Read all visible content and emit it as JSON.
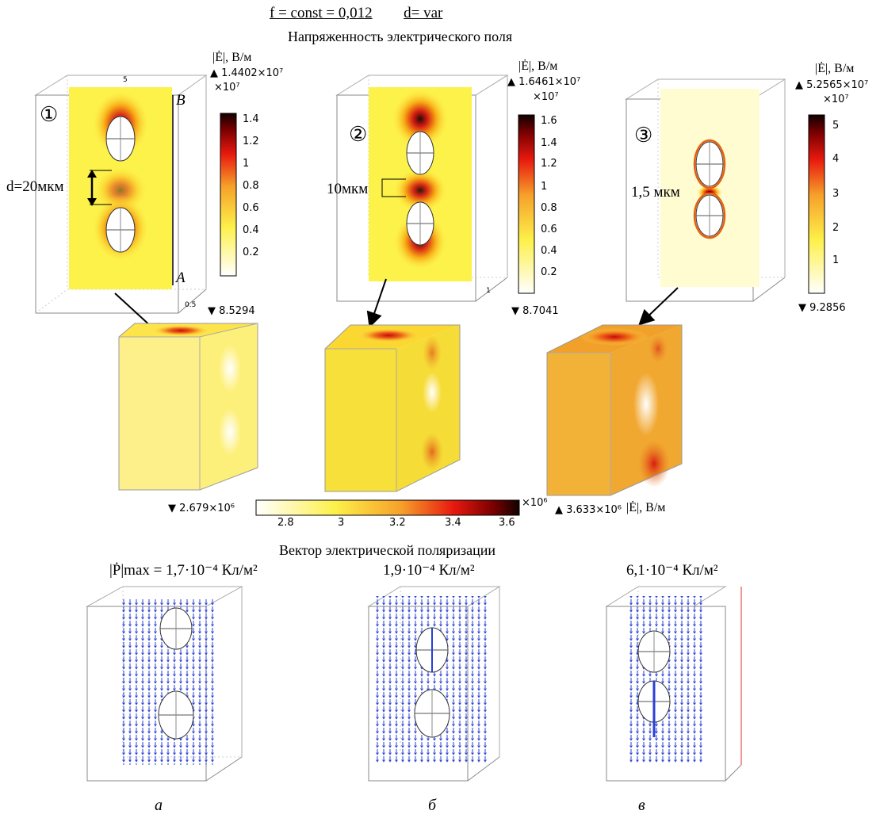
{
  "header": {
    "f_label": "f = const = 0,012",
    "d_label": "d= var"
  },
  "section_field_title": "Напряженность электрического поля",
  "section_polarization_title": "Вектор электрической поляризации",
  "field_panels": [
    {
      "circle_label": "①",
      "unit": "|Ė|, В/м",
      "max_label": "▲ 1.4402×10⁷",
      "multiplier": "×10⁷",
      "ticks": [
        "1.4",
        "1.2",
        "1",
        "0.8",
        "0.6",
        "0.4",
        "0.2"
      ],
      "min_label": "▼ 8.5294",
      "distance_label": "d=20мкм",
      "point_b": "B",
      "point_a": "A"
    },
    {
      "circle_label": "②",
      "unit": "|Ė|, В/м",
      "max_label": "▲ 1.6461×10⁷",
      "multiplier": "×10⁷",
      "ticks": [
        "1.6",
        "1.4",
        "1.2",
        "1",
        "0.8",
        "0.6",
        "0.4",
        "0.2"
      ],
      "min_label": "▼ 8.7041",
      "distance_label": "10мкм"
    },
    {
      "circle_label": "③",
      "unit": "|Ė|, В/м",
      "max_label": "▲ 5.2565×10⁷",
      "multiplier": "×10⁷",
      "ticks": [
        "5",
        "4",
        "3",
        "2",
        "1"
      ],
      "min_label": "▼ 9.2856",
      "distance_label": "1,5 мкм"
    }
  ],
  "axis_ticks": {
    "top": "5",
    "side_a": "0.5",
    "side_b": "1"
  },
  "shared_colorbar": {
    "min_label": "▼ 2.679×10⁶",
    "max_label": "▲ 3.633×10⁶",
    "unit": "|Ė|, В/м",
    "multiplier": "×10⁶",
    "ticks": [
      "2.8",
      "3",
      "3.2",
      "3.4",
      "3.6"
    ]
  },
  "polarization_panels": [
    {
      "value_prefix": "|Ṗ|max = ",
      "value": "1,7·10⁻⁴ Кл/м²",
      "letter": "а"
    },
    {
      "value_prefix": "",
      "value": "1,9·10⁻⁴ Кл/м²",
      "letter": "б"
    },
    {
      "value_prefix": "",
      "value": "6,1·10⁻⁴ Кл/м²",
      "letter": "в"
    }
  ],
  "colors": {
    "arrow": "#2a3fd6",
    "field_base": "#fdf24a",
    "colormap_dark": "#200000",
    "colormap_red": "#e8190f"
  }
}
